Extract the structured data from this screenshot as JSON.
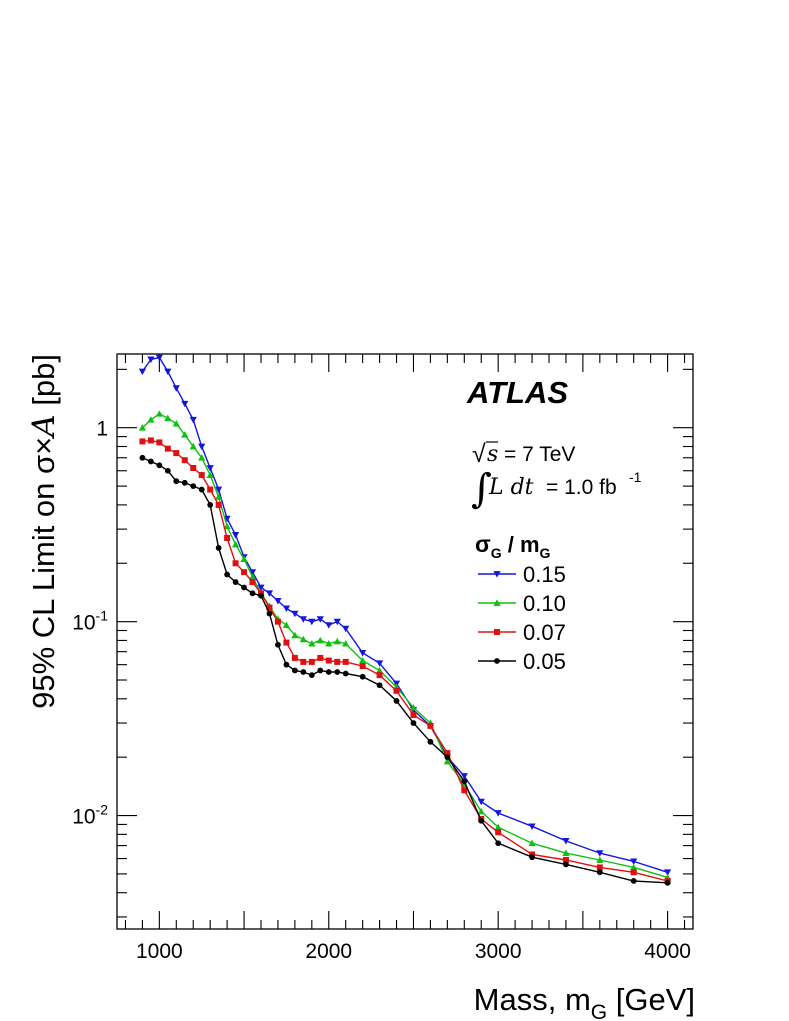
{
  "chart_data": {
    "type": "line",
    "xlabel": "Mass, m",
    "xlabel_sub": "G",
    "xlabel_unit": "[GeV]",
    "ylabel_prefix": "95% CL Limit on σ×",
    "ylabel_A": "A",
    "ylabel_suffix": "[pb]",
    "xlim": [
      750,
      4150
    ],
    "ylim": [
      0.0026,
      2.4
    ],
    "yscale": "log",
    "x_ticks": [
      1000,
      2000,
      3000,
      4000
    ],
    "x_tick_labels": [
      "1000",
      "2000",
      "3000",
      "4000"
    ],
    "y_tick_labels": [
      {
        "value": 1,
        "base": "1",
        "exp": ""
      },
      {
        "value": 0.1,
        "base": "10",
        "exp": "-1"
      },
      {
        "value": 0.01,
        "base": "10",
        "exp": "-2"
      }
    ],
    "annotations": {
      "experiment": "ATLAS",
      "sqrt_s_symbol": "√",
      "sqrt_s_var": "s",
      "sqrt_s_value": "= 7 TeV",
      "lumi_integral": "∫",
      "lumi_var": "L dt",
      "lumi_value": "= 1.0 fb",
      "lumi_exp": "-1"
    },
    "legend": {
      "position": "right",
      "title_sigma": "σ",
      "title_sigma_sub": "G",
      "title_sep": " / ",
      "title_m": "m",
      "title_m_sub": "G"
    },
    "series": [
      {
        "name": "0.15",
        "color": "#1515e0",
        "marker": "triangle-down",
        "x": [
          900,
          950,
          1000,
          1050,
          1100,
          1150,
          1200,
          1250,
          1300,
          1350,
          1400,
          1450,
          1500,
          1550,
          1600,
          1650,
          1700,
          1750,
          1800,
          1850,
          1900,
          1950,
          2000,
          2050,
          2100,
          2200,
          2300,
          2400,
          2500,
          2600,
          2700,
          2800,
          2900,
          3000,
          3200,
          3400,
          3600,
          3800,
          4000
        ],
        "y": [
          1.95,
          2.25,
          2.3,
          1.95,
          1.6,
          1.33,
          1.1,
          0.8,
          0.62,
          0.48,
          0.34,
          0.28,
          0.215,
          0.18,
          0.15,
          0.14,
          0.128,
          0.117,
          0.11,
          0.103,
          0.1,
          0.103,
          0.096,
          0.1,
          0.092,
          0.069,
          0.061,
          0.048,
          0.035,
          0.029,
          0.02,
          0.016,
          0.0118,
          0.0103,
          0.0088,
          0.0074,
          0.0064,
          0.0058,
          0.0051
        ]
      },
      {
        "name": "0.10",
        "color": "#10c010",
        "marker": "triangle-up",
        "x": [
          900,
          950,
          1000,
          1050,
          1100,
          1150,
          1200,
          1250,
          1300,
          1350,
          1400,
          1450,
          1500,
          1550,
          1600,
          1650,
          1700,
          1750,
          1800,
          1850,
          1900,
          1950,
          2000,
          2050,
          2100,
          2200,
          2300,
          2400,
          2500,
          2600,
          2700,
          2800,
          2900,
          3000,
          3200,
          3400,
          3600,
          3800,
          4000
        ],
        "y": [
          1.0,
          1.1,
          1.18,
          1.12,
          1.05,
          0.92,
          0.8,
          0.7,
          0.57,
          0.44,
          0.31,
          0.25,
          0.21,
          0.17,
          0.14,
          0.12,
          0.103,
          0.096,
          0.085,
          0.081,
          0.077,
          0.08,
          0.077,
          0.079,
          0.077,
          0.063,
          0.056,
          0.046,
          0.036,
          0.03,
          0.019,
          0.0145,
          0.0105,
          0.0087,
          0.0072,
          0.0064,
          0.0059,
          0.0054,
          0.0048
        ]
      },
      {
        "name": "0.07",
        "color": "#e01010",
        "marker": "square",
        "x": [
          900,
          950,
          1000,
          1050,
          1100,
          1150,
          1200,
          1250,
          1300,
          1350,
          1400,
          1450,
          1500,
          1550,
          1600,
          1650,
          1700,
          1750,
          1800,
          1850,
          1900,
          1950,
          2000,
          2050,
          2100,
          2200,
          2300,
          2400,
          2500,
          2600,
          2700,
          2800,
          2900,
          3000,
          3200,
          3400,
          3600,
          3800,
          4000
        ],
        "y": [
          0.85,
          0.86,
          0.84,
          0.78,
          0.74,
          0.68,
          0.62,
          0.57,
          0.48,
          0.4,
          0.27,
          0.2,
          0.18,
          0.16,
          0.14,
          0.118,
          0.1,
          0.078,
          0.065,
          0.062,
          0.062,
          0.065,
          0.063,
          0.062,
          0.062,
          0.059,
          0.053,
          0.044,
          0.033,
          0.029,
          0.021,
          0.0135,
          0.0096,
          0.0082,
          0.0063,
          0.0059,
          0.0054,
          0.0051,
          0.0046
        ]
      },
      {
        "name": "0.05",
        "color": "#000000",
        "marker": "circle",
        "x": [
          900,
          950,
          1000,
          1050,
          1100,
          1150,
          1200,
          1250,
          1300,
          1350,
          1400,
          1450,
          1500,
          1550,
          1600,
          1650,
          1700,
          1750,
          1800,
          1850,
          1900,
          1950,
          2000,
          2050,
          2100,
          2200,
          2300,
          2400,
          2500,
          2600,
          2700,
          2800,
          2900,
          3000,
          3200,
          3400,
          3600,
          3800,
          4000
        ],
        "y": [
          0.7,
          0.67,
          0.64,
          0.6,
          0.53,
          0.52,
          0.5,
          0.48,
          0.4,
          0.24,
          0.175,
          0.16,
          0.15,
          0.14,
          0.136,
          0.11,
          0.076,
          0.06,
          0.056,
          0.055,
          0.053,
          0.056,
          0.055,
          0.055,
          0.054,
          0.052,
          0.047,
          0.039,
          0.03,
          0.024,
          0.02,
          0.015,
          0.0094,
          0.0072,
          0.0061,
          0.0056,
          0.0051,
          0.0046,
          0.0045
        ]
      }
    ]
  }
}
